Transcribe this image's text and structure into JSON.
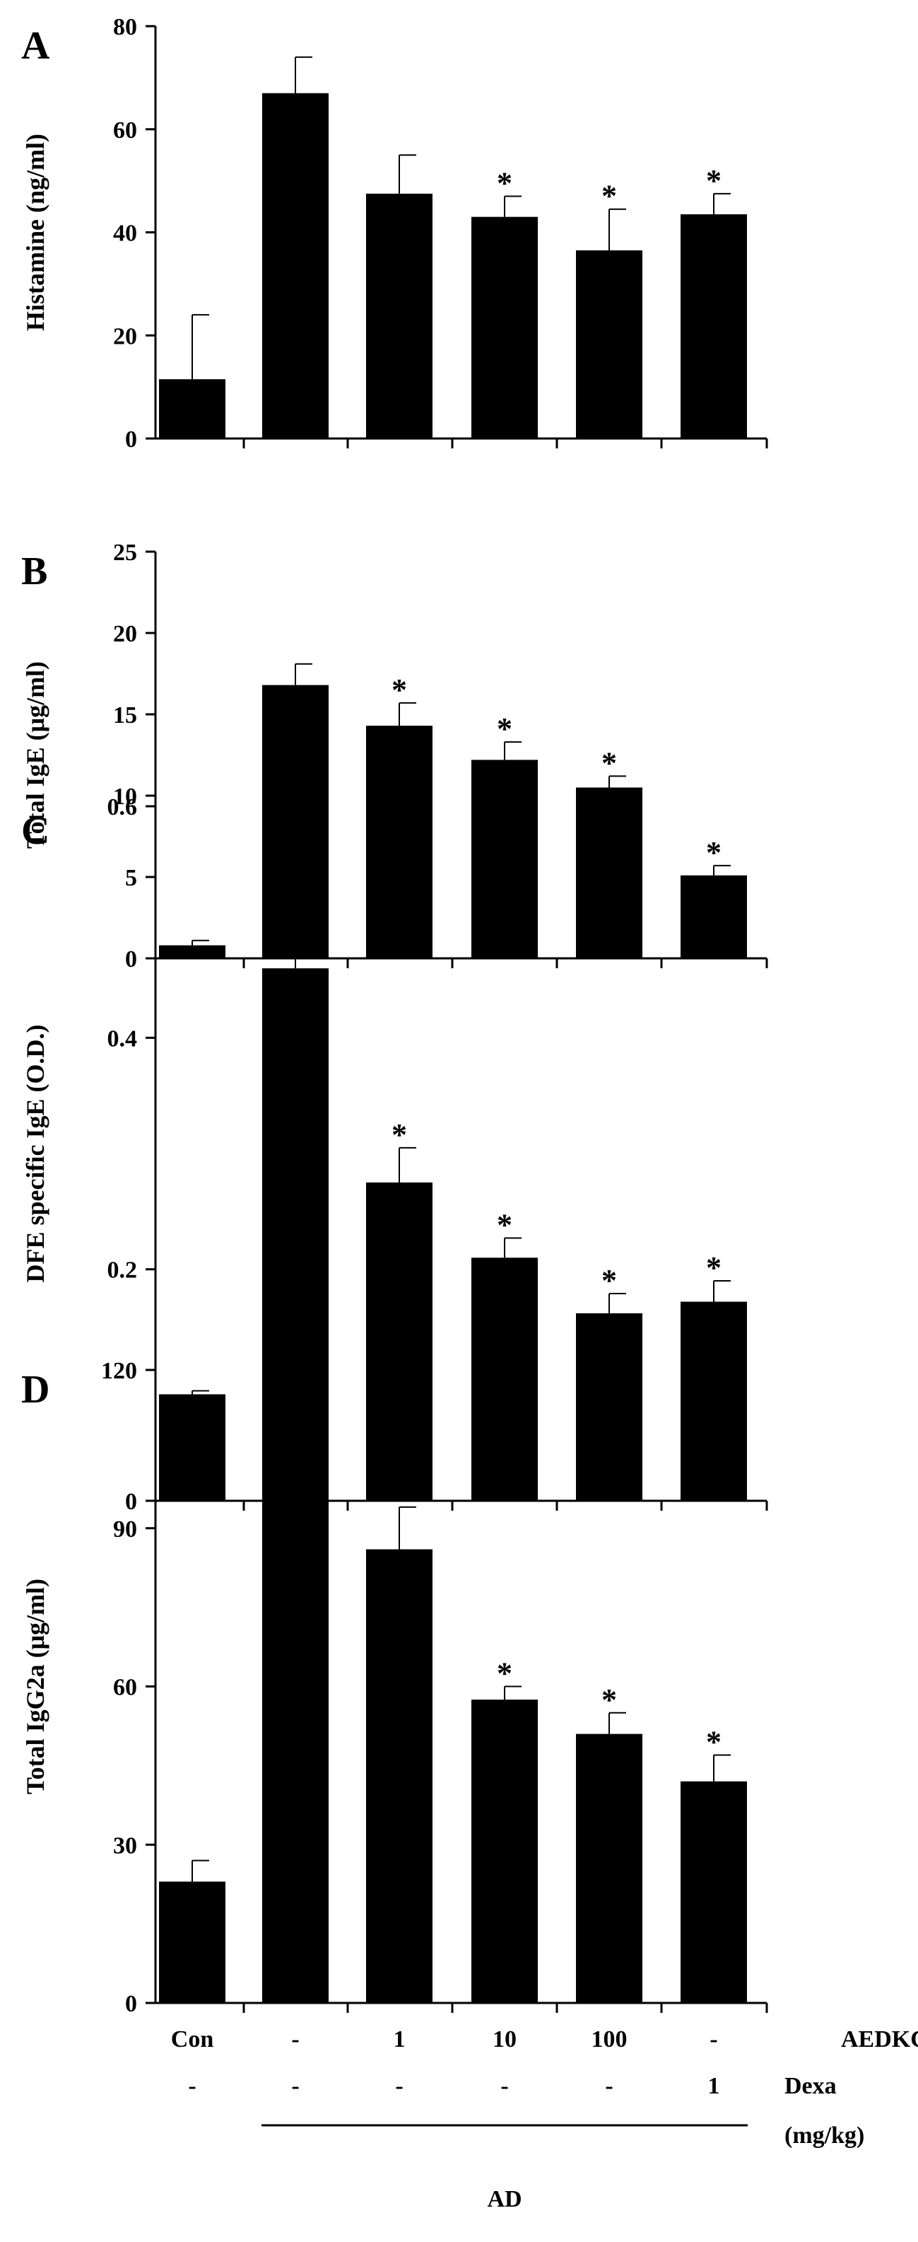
{
  "chart_data": [
    {
      "type": "bar",
      "panel": "A",
      "ylabel": "Histamine (ng/ml)",
      "ylim": [
        0,
        80
      ],
      "yticks": [
        0,
        20,
        40,
        60,
        80
      ],
      "values": [
        11.5,
        67,
        47.5,
        43,
        36.5,
        43.5
      ],
      "errors": [
        12.5,
        7,
        7.5,
        4,
        8,
        4
      ],
      "significant": [
        false,
        false,
        false,
        true,
        true,
        true
      ],
      "significance_marker": "*"
    },
    {
      "type": "bar",
      "panel": "B",
      "ylabel": "Total IgE (μg/ml)",
      "ylim": [
        0,
        25
      ],
      "yticks": [
        0,
        5,
        10,
        15,
        20,
        25
      ],
      "values": [
        0.8,
        16.8,
        14.3,
        12.2,
        10.5,
        5.1
      ],
      "errors": [
        0.3,
        1.3,
        1.4,
        1.1,
        0.7,
        0.6
      ],
      "significant": [
        false,
        false,
        true,
        true,
        true,
        true
      ],
      "significance_marker": "*"
    },
    {
      "type": "bar",
      "panel": "C",
      "ylabel": "DFE specific IgE (O.D.)",
      "ylim": [
        0,
        0.6
      ],
      "yticks": [
        0,
        0.2,
        0.4,
        0.6
      ],
      "ytick_labels": [
        "0",
        "0.2",
        "0.4",
        "0.6"
      ],
      "values": [
        0.092,
        0.46,
        0.275,
        0.21,
        0.162,
        0.172
      ],
      "errors": [
        0.003,
        0.052,
        0.03,
        0.017,
        0.017,
        0.018
      ],
      "significant": [
        false,
        false,
        true,
        true,
        true,
        true
      ],
      "significance_marker": "*"
    },
    {
      "type": "bar",
      "panel": "D",
      "ylabel": "Total IgG2a (μg/ml)",
      "ylim": [
        0,
        120
      ],
      "yticks": [
        0,
        30,
        60,
        90,
        120
      ],
      "values": [
        23,
        104,
        86,
        57.5,
        51,
        42
      ],
      "errors": [
        4,
        6.5,
        8,
        2.5,
        4,
        5
      ],
      "significant": [
        false,
        false,
        false,
        true,
        true,
        true
      ],
      "significance_marker": "*"
    }
  ],
  "x_conditions": {
    "aedkc_label": "AEDKC",
    "aedkc_values": [
      "Con",
      "-",
      "1",
      "10",
      "100",
      "-"
    ],
    "dexa_label": "Dexa",
    "dexa_values": [
      "-",
      "-",
      "-",
      "-",
      "-",
      "1"
    ],
    "unit_label": "(mg/kg)",
    "group_label": "AD"
  },
  "colors": {
    "bar": "#000000",
    "axis": "#000000"
  }
}
